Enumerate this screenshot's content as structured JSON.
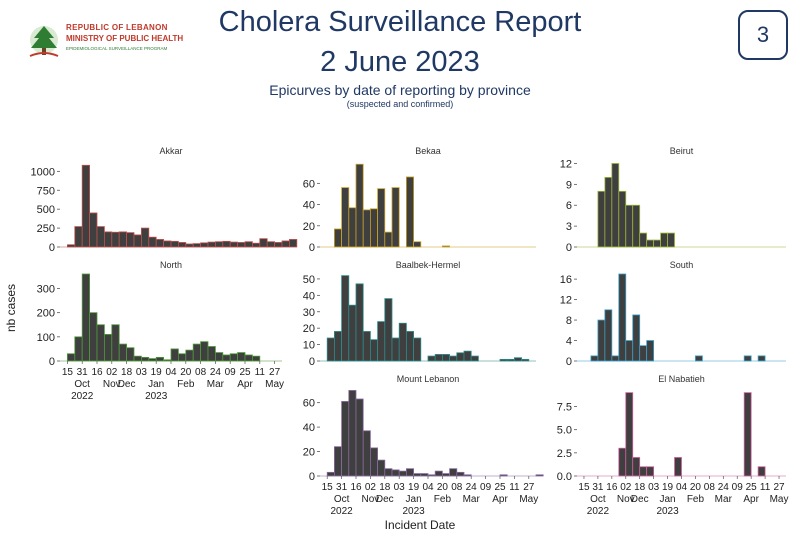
{
  "header": {
    "title_line1": "Cholera Surveillance Report",
    "title_line2": "2 June 2023",
    "subtitle": "Epicurves by date of reporting by province",
    "subnote": "(suspected and confirmed)",
    "page_number": "3",
    "logo_line1": "REPUBLIC OF LEBANON",
    "logo_line2": "MINISTRY OF PUBLIC HEALTH",
    "logo_line3": "EPIDEMIOLOGICAL SURVEILLANCE PROGRAM"
  },
  "axes": {
    "ylabel": "nb cases",
    "xlabel": "Incident Date",
    "x_ticks": [
      "15",
      "31",
      "16",
      "02",
      "18",
      "03",
      "19",
      "04",
      "20",
      "08",
      "24",
      "09",
      "25",
      "11",
      "27"
    ],
    "month_labels": [
      {
        "text": "Oct",
        "pos": 1.5,
        "year": "2022"
      },
      {
        "text": "Nov",
        "pos": 3.5
      },
      {
        "text": "Dec",
        "pos": 4.5
      },
      {
        "text": "Jan",
        "pos": 6.5,
        "year": "2023"
      },
      {
        "text": "Feb",
        "pos": 8.5
      },
      {
        "text": "Mar",
        "pos": 10.5
      },
      {
        "text": "Apr",
        "pos": 12.5
      },
      {
        "text": "May",
        "pos": 14.5
      }
    ]
  },
  "colors": {
    "grid_line": "#cccccc",
    "bar_edges": {
      "Akkar": "#c0504d",
      "North": "#4f9a3a",
      "Bekaa": "#c9a227",
      "Baalbek-Hermel": "#2e8b8b",
      "Beirut": "#9ab83a",
      "South": "#3aa0c8",
      "Mount Lebanon": "#8a6aa0",
      "El Nabatieh": "#d060a0"
    },
    "bar_fill": "#3f3f3f"
  },
  "chart_data": [
    {
      "type": "bar",
      "title": "Akkar",
      "ylim": [
        0,
        1150
      ],
      "yticks": [
        0,
        250,
        500,
        750,
        1000
      ],
      "start": 0.5,
      "values": [
        30,
        270,
        1080,
        450,
        270,
        200,
        195,
        200,
        190,
        160,
        250,
        130,
        100,
        80,
        75,
        60,
        40,
        45,
        55,
        65,
        70,
        75,
        65,
        60,
        70,
        50,
        110,
        70,
        60,
        80,
        100
      ]
    },
    {
      "type": "bar",
      "title": "North",
      "ylim": [
        0,
        360
      ],
      "yticks": [
        0,
        100,
        200,
        300
      ],
      "start": 0.5,
      "values": [
        30,
        100,
        360,
        200,
        150,
        110,
        150,
        70,
        55,
        20,
        15,
        10,
        15,
        5,
        50,
        30,
        45,
        70,
        80,
        60,
        35,
        25,
        30,
        35,
        25,
        20
      ]
    },
    {
      "type": "bar",
      "title": "Bekaa",
      "ylim": [
        0,
        82
      ],
      "yticks": [
        0,
        20,
        40,
        60
      ],
      "start": 1.0,
      "values": [
        17,
        56,
        37,
        78,
        35,
        36,
        55,
        14,
        56,
        0,
        66,
        5,
        0,
        0,
        0,
        1
      ]
    },
    {
      "type": "bar",
      "title": "Baalbek-Hermel",
      "ylim": [
        0,
        53
      ],
      "yticks": [
        0,
        10,
        20,
        30,
        40,
        50
      ],
      "start": 0.5,
      "values": [
        14,
        18,
        52,
        34,
        47,
        18,
        13,
        24,
        38,
        14,
        23,
        18,
        14,
        0,
        3,
        4,
        4,
        3,
        5,
        6,
        3,
        0,
        0,
        0,
        1,
        1,
        2,
        1,
        0
      ]
    },
    {
      "type": "bar",
      "title": "Beirut",
      "ylim": [
        0,
        12.5
      ],
      "yticks": [
        0,
        3,
        6,
        9,
        12
      ],
      "start": 1.5,
      "values": [
        8,
        10,
        12,
        8,
        6,
        6,
        2,
        1,
        1,
        2,
        2
      ]
    },
    {
      "type": "bar",
      "title": "South",
      "ylim": [
        0,
        17
      ],
      "yticks": [
        0,
        4,
        8,
        12,
        16
      ],
      "start": 0.5,
      "values": [
        0,
        1,
        8,
        10,
        1,
        17,
        4,
        9,
        3,
        4,
        0,
        0,
        0,
        0,
        0,
        0,
        1,
        0,
        0,
        0,
        0,
        0,
        0,
        1,
        0,
        1
      ]
    },
    {
      "type": "bar",
      "title": "Mount Lebanon",
      "ylim": [
        0,
        72
      ],
      "yticks": [
        0,
        20,
        40,
        60
      ],
      "start": 0.5,
      "values": [
        3,
        24,
        61,
        70,
        63,
        37,
        23,
        13,
        6,
        5,
        4,
        6,
        2,
        2,
        1,
        4,
        2,
        6,
        3,
        1,
        0,
        0,
        0,
        0,
        1,
        0,
        0,
        0,
        0,
        1
      ]
    },
    {
      "type": "bar",
      "title": "El Nabatieh",
      "ylim": [
        0,
        9.5
      ],
      "yticks": [
        0.0,
        2.5,
        5.0,
        7.5
      ],
      "start": 0.5,
      "values": [
        0,
        0,
        0,
        0,
        0,
        3,
        9,
        2,
        1,
        1,
        0,
        0,
        0,
        2,
        0,
        0,
        0,
        0,
        0,
        0,
        0,
        0,
        0,
        9,
        0,
        1,
        0,
        0,
        0,
        0,
        0
      ]
    }
  ]
}
